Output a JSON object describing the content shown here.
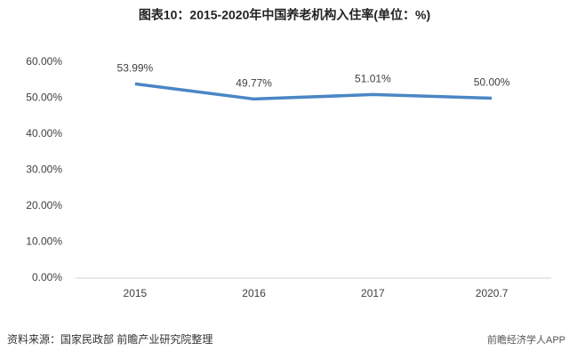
{
  "chart_data": {
    "type": "line",
    "title": "图表10：2015-2020年中国养老机构入住率(单位：%)",
    "categories": [
      "2015",
      "2016",
      "2017",
      "2020.7"
    ],
    "series": [
      {
        "name": "入住率",
        "color": "#4a86c5",
        "values": [
          53.99,
          49.77,
          51.01,
          50.0
        ],
        "value_labels": [
          "53.99%",
          "49.77%",
          "51.01%",
          "50.00%"
        ]
      }
    ],
    "ylim": [
      0,
      60
    ],
    "yticks": [
      {
        "value": 0,
        "label": "0.00%"
      },
      {
        "value": 10,
        "label": "10.00%"
      },
      {
        "value": 20,
        "label": "20.00%"
      },
      {
        "value": 30,
        "label": "30.00%"
      },
      {
        "value": 40,
        "label": "40.00%"
      },
      {
        "value": 50,
        "label": "50.00%"
      },
      {
        "value": 60,
        "label": "60.00%"
      }
    ],
    "grid": false,
    "source": "资料来源：国家民政部 前瞻产业研究院整理",
    "footer_right": "前瞻经济学人APP"
  }
}
